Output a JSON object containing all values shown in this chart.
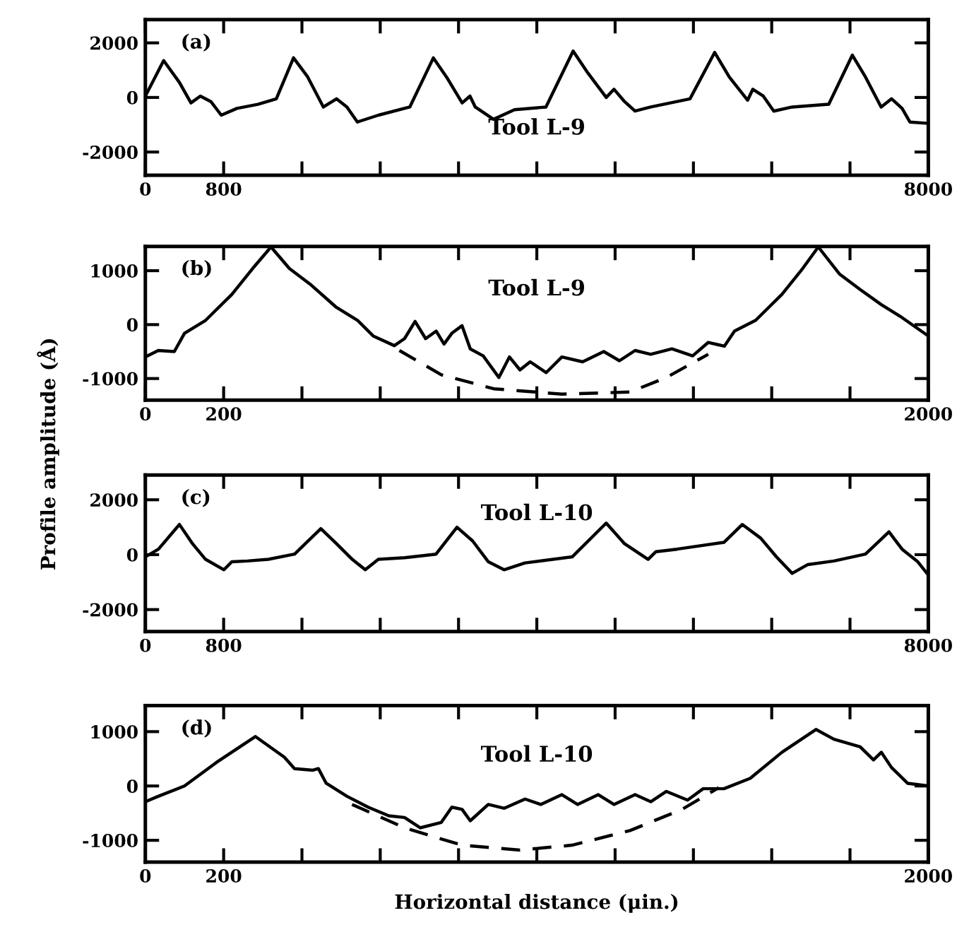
{
  "chart_data": [
    {
      "type": "line",
      "annotations": [
        "(a)",
        "Tool L-9"
      ],
      "xlim": [
        0,
        8000
      ],
      "xticks": [
        0,
        800,
        {
          "value": 1600,
          "label": null
        },
        {
          "value": 2400,
          "label": null
        },
        {
          "value": 3200,
          "label": null
        },
        {
          "value": 4000,
          "label": null
        },
        {
          "value": 4800,
          "label": null
        },
        {
          "value": 5600,
          "label": null
        },
        {
          "value": 6400,
          "label": null
        },
        {
          "value": 7200,
          "label": null
        },
        8000
      ],
      "ylim": [
        -2850,
        2850
      ],
      "yticks": [
        -2000,
        0,
        2000
      ],
      "grid": false,
      "legend": false,
      "series": [
        {
          "color": "#000000",
          "line_style": "solid",
          "x": [
            0,
            187,
            348,
            466,
            562,
            669,
            776,
            936,
            1150,
            1338,
            1514,
            1659,
            1819,
            1953,
            2060,
            2167,
            2381,
            2702,
            2943,
            3077,
            3237,
            3317,
            3371,
            3558,
            3772,
            4093,
            4371,
            4521,
            4709,
            4789,
            4896,
            5003,
            5164,
            5565,
            5817,
            5966,
            6154,
            6207,
            6314,
            6421,
            6609,
            6983,
            7224,
            7358,
            7518,
            7625,
            7732,
            7812,
            8000
          ],
          "values": [
            50,
            1350,
            550,
            -200,
            50,
            -150,
            -650,
            -400,
            -250,
            -50,
            1450,
            750,
            -350,
            -50,
            -350,
            -900,
            -650,
            -350,
            1450,
            750,
            -200,
            50,
            -350,
            -800,
            -450,
            -350,
            1700,
            900,
            0,
            300,
            -150,
            -500,
            -350,
            -50,
            1650,
            750,
            -100,
            300,
            50,
            -500,
            -350,
            -250,
            1550,
            750,
            -350,
            -50,
            -400,
            -900,
            -950
          ]
        }
      ]
    },
    {
      "type": "line",
      "ylabel": "Profile amplitude (Å)",
      "annotations": [
        "(b)",
        "Tool L-9"
      ],
      "xlim": [
        0,
        2000
      ],
      "xticks": [
        0,
        200,
        {
          "value": 400,
          "label": null
        },
        {
          "value": 600,
          "label": null
        },
        {
          "value": 800,
          "label": null
        },
        {
          "value": 1000,
          "label": null
        },
        {
          "value": 1200,
          "label": null
        },
        {
          "value": 1400,
          "label": null
        },
        {
          "value": 1600,
          "label": null
        },
        {
          "value": 1800,
          "label": null
        },
        2000
      ],
      "ylim": [
        -1400,
        1450
      ],
      "yticks": [
        -1000,
        0,
        1000
      ],
      "grid": false,
      "legend": false,
      "series": [
        {
          "color": "#000000",
          "line_style": "solid",
          "x": [
            0,
            33,
            74,
            100,
            154,
            221,
            274,
            321,
            368,
            421,
            488,
            542,
            582,
            636,
            662,
            689,
            716,
            743,
            763,
            783,
            809,
            830,
            863,
            903,
            930,
            957,
            983,
            1024,
            1064,
            1117,
            1171,
            1211,
            1251,
            1291,
            1345,
            1398,
            1438,
            1479,
            1505,
            1559,
            1626,
            1679,
            1719,
            1773,
            1826,
            1880,
            1933,
            2000
          ],
          "values": [
            -600,
            -480,
            -500,
            -160,
            80,
            560,
            1040,
            1440,
            1040,
            750,
            320,
            80,
            -210,
            -390,
            -260,
            60,
            -260,
            -120,
            -360,
            -160,
            -20,
            -450,
            -580,
            -980,
            -600,
            -840,
            -690,
            -890,
            -600,
            -690,
            -500,
            -670,
            -480,
            -550,
            -450,
            -580,
            -330,
            -400,
            -120,
            80,
            560,
            1040,
            1440,
            940,
            650,
            370,
            130,
            -210
          ]
        },
        {
          "color": "#000000",
          "line_style": "dashed",
          "x": [
            649,
            756,
            890,
            1064,
            1238,
            1331,
            1438
          ],
          "values": [
            -480,
            -930,
            -1190,
            -1290,
            -1250,
            -980,
            -550
          ]
        }
      ]
    },
    {
      "type": "line",
      "annotations": [
        "(c)",
        "Tool L-10"
      ],
      "xlim": [
        0,
        8000
      ],
      "xticks": [
        0,
        800,
        {
          "value": 1600,
          "label": null
        },
        {
          "value": 2400,
          "label": null
        },
        {
          "value": 3200,
          "label": null
        },
        {
          "value": 4000,
          "label": null
        },
        {
          "value": 4800,
          "label": null
        },
        {
          "value": 5600,
          "label": null
        },
        {
          "value": 6400,
          "label": null
        },
        {
          "value": 7200,
          "label": null
        },
        8000
      ],
      "ylim": [
        -2800,
        2900
      ],
      "yticks": [
        -2000,
        0,
        2000
      ],
      "grid": false,
      "legend": false,
      "series": [
        {
          "color": "#000000",
          "line_style": "solid",
          "x": [
            0,
            134,
            348,
            482,
            615,
            803,
            883,
            1043,
            1257,
            1525,
            1793,
            1953,
            2114,
            2247,
            2381,
            2649,
            2970,
            3184,
            3344,
            3505,
            3665,
            3879,
            4361,
            4709,
            4896,
            5137,
            5217,
            5431,
            5913,
            6100,
            6288,
            6448,
            6609,
            6769,
            7036,
            7358,
            7598,
            7732,
            7893,
            8000
          ],
          "values": [
            -80,
            200,
            1100,
            400,
            -170,
            -550,
            -260,
            -230,
            -170,
            20,
            950,
            400,
            -170,
            -550,
            -170,
            -110,
            20,
            1000,
            500,
            -260,
            -550,
            -300,
            -80,
            1150,
            400,
            -170,
            110,
            200,
            450,
            1100,
            600,
            -80,
            -680,
            -360,
            -230,
            20,
            830,
            200,
            -260,
            -740
          ]
        }
      ]
    },
    {
      "type": "line",
      "xlabel": "Horizontal distance (μin.)",
      "annotations": [
        "(d)",
        "Tool L-10"
      ],
      "xlim": [
        0,
        2000
      ],
      "xticks": [
        0,
        200,
        {
          "value": 400,
          "label": null
        },
        {
          "value": 600,
          "label": null
        },
        {
          "value": 800,
          "label": null
        },
        {
          "value": 1000,
          "label": null
        },
        {
          "value": 1200,
          "label": null
        },
        {
          "value": 1400,
          "label": null
        },
        {
          "value": 1600,
          "label": null
        },
        {
          "value": 1800,
          "label": null
        },
        2000
      ],
      "ylim": [
        -1400,
        1480
      ],
      "yticks": [
        -1000,
        0,
        1000
      ],
      "grid": false,
      "legend": false,
      "series": [
        {
          "color": "#000000",
          "line_style": "solid",
          "x": [
            0,
            33,
            100,
            181,
            281,
            355,
            381,
            428,
            442,
            462,
            515,
            569,
            622,
            662,
            702,
            756,
            783,
            809,
            830,
            876,
            917,
            970,
            1010,
            1064,
            1104,
            1157,
            1197,
            1251,
            1291,
            1331,
            1385,
            1425,
            1478,
            1545,
            1626,
            1713,
            1759,
            1826,
            1860,
            1880,
            1906,
            1947,
            2000
          ],
          "values": [
            -290,
            -190,
            0,
            430,
            910,
            530,
            320,
            290,
            320,
            50,
            -190,
            -390,
            -550,
            -580,
            -770,
            -670,
            -390,
            -430,
            -640,
            -340,
            -410,
            -240,
            -340,
            -160,
            -340,
            -160,
            -340,
            -160,
            -290,
            -100,
            -260,
            -50,
            -50,
            140,
            620,
            1040,
            860,
            720,
            480,
            620,
            340,
            50,
            0
          ]
        },
        {
          "color": "#000000",
          "line_style": "dashed",
          "x": [
            528,
            662,
            809,
            957,
            1090,
            1238,
            1371,
            1465
          ],
          "values": [
            -340,
            -770,
            -1090,
            -1180,
            -1090,
            -820,
            -430,
            -30
          ]
        }
      ]
    }
  ]
}
